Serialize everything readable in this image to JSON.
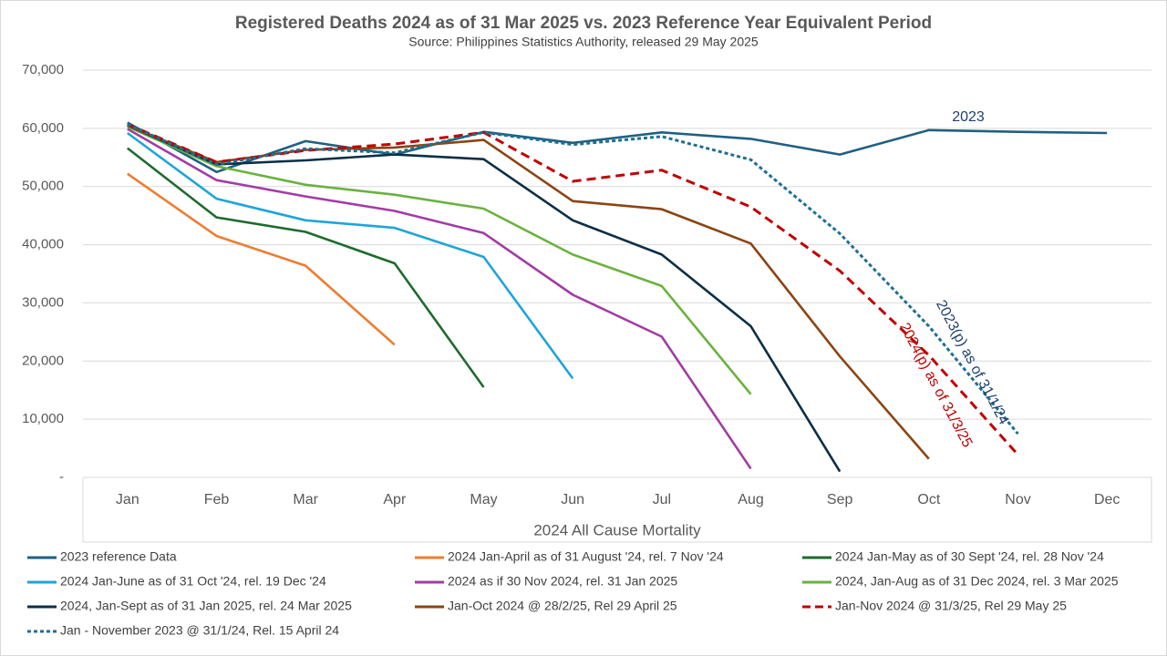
{
  "chart_data": {
    "type": "line",
    "title": "Registered  Deaths 2024 as of 31 Mar 2025 vs. 2023 Reference  Year Equivalent Period",
    "subtitle": "Source: Philippines Statistics Authority, released 29 May 2025",
    "x_label": "2024 All Cause Mortality",
    "categories": [
      "Jan",
      "Feb",
      "Mar",
      "Apr",
      "May",
      "Jun",
      "Jul",
      "Aug",
      "Sep",
      "Oct",
      "Nov",
      "Dec"
    ],
    "ylim": [
      0,
      70000
    ],
    "yticks": [
      {
        "value": 0,
        "label": "-"
      },
      {
        "value": 10000,
        "label": "10,000"
      },
      {
        "value": 20000,
        "label": "20,000"
      },
      {
        "value": 30000,
        "label": "30,000"
      },
      {
        "value": 40000,
        "label": "40,000"
      },
      {
        "value": 50000,
        "label": "50,000"
      },
      {
        "value": 60000,
        "label": "60,000"
      },
      {
        "value": 70000,
        "label": "70,000"
      }
    ],
    "grid": true,
    "series": [
      {
        "name": "2023 reference Data",
        "color": "#1f6082",
        "dashed": false,
        "values": [
          61000,
          52500,
          57800,
          55500,
          59400,
          57500,
          59300,
          58200,
          55500,
          59700,
          59400,
          59200
        ]
      },
      {
        "name": "2024 Jan-April as of 31 August '24, rel. 7 Nov '24",
        "color": "#ed7d31",
        "dashed": false,
        "values": [
          52200,
          41500,
          36400,
          22800,
          null,
          null,
          null,
          null,
          null,
          null,
          null,
          null
        ]
      },
      {
        "name": "2024 Jan-May as of 30 Sept '24, rel. 28 Nov '24",
        "color": "#1e6b2e",
        "dashed": false,
        "values": [
          56600,
          44700,
          42200,
          36800,
          15500,
          null,
          null,
          null,
          null,
          null,
          null,
          null
        ]
      },
      {
        "name": "2024 Jan-June as of 31 Oct '24, rel. 19 Dec '24",
        "color": "#1ea5d8",
        "dashed": false,
        "values": [
          59200,
          47900,
          44200,
          42900,
          37900,
          17000,
          null,
          null,
          null,
          null,
          null,
          null
        ]
      },
      {
        "name": "2024 as if 30 Nov 2024, rel. 31 Jan 2025",
        "color": "#a23ca5",
        "dashed": false,
        "values": [
          59900,
          51100,
          48300,
          45800,
          42000,
          31400,
          24200,
          1500,
          null,
          null,
          null,
          null
        ]
      },
      {
        "name": "2024, Jan-Aug as of 31 Dec 2024, rel. 3 Mar 2025",
        "color": "#6ab23e",
        "dashed": false,
        "values": [
          60300,
          53500,
          50300,
          48600,
          46200,
          38300,
          32900,
          14300,
          null,
          null,
          null,
          null
        ]
      },
      {
        "name": "2024, Jan-Sept as of 31 Jan 2025, rel. 24 Mar 2025",
        "color": "#0d2f45",
        "dashed": false,
        "values": [
          60500,
          53800,
          54500,
          55500,
          54700,
          44200,
          38300,
          26000,
          1000,
          null,
          null,
          null
        ]
      },
      {
        "name": "Jan-Oct 2024 @ 28/2/25, Rel 29 April 25",
        "color": "#8b4513",
        "dashed": false,
        "values": [
          60500,
          54200,
          56300,
          56700,
          58000,
          47500,
          46100,
          40200,
          20800,
          3200,
          null,
          null
        ]
      },
      {
        "name": "Jan-Nov 2024 @ 31/3/25, Rel 29 May 25",
        "color": "#c00000",
        "dashed": true,
        "values": [
          60700,
          54200,
          56200,
          57300,
          59300,
          50900,
          52800,
          46500,
          35500,
          21000,
          3900,
          null
        ]
      },
      {
        "name": "Jan - November 2023 @ 31/1/24, Rel. 15 April 24",
        "color": "#1f6f8f",
        "dashed": true,
        "values": [
          60700,
          53800,
          56500,
          55800,
          59300,
          57200,
          58600,
          54600,
          41900,
          26000,
          7500,
          null
        ]
      }
    ],
    "annotations": [
      {
        "text": "2023",
        "color": "#1f3f6f"
      },
      {
        "text": "2023(p) as of 31/1/24",
        "color": "#1f3f6f"
      },
      {
        "text": "2024(p) as of 31/3/25",
        "color": "#c00000"
      }
    ]
  }
}
